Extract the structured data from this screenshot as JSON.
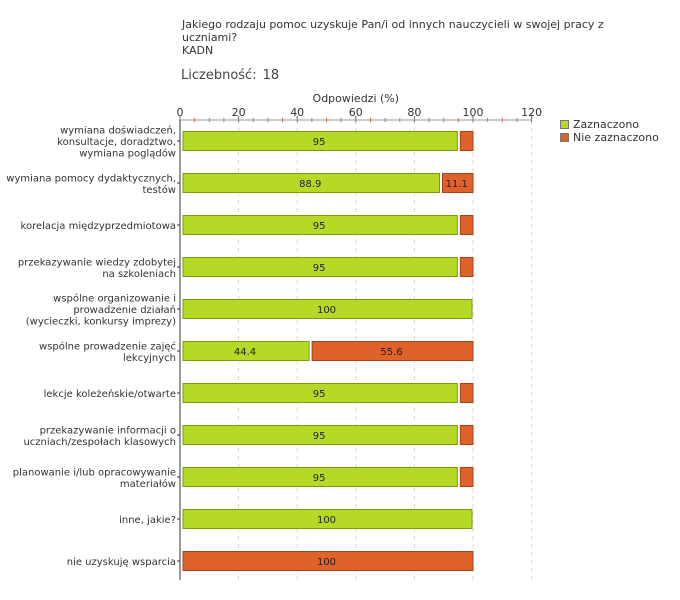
{
  "header": {
    "title": "Jakiego rodzaju pomoc uzyskuje Pan/i od innych nauczycieli w swojej pracy z uczniami?\nKADN",
    "count_label": "Liczebność:",
    "count_value": "18"
  },
  "colors": {
    "selected": "#b5d924",
    "not_selected": "#e0622b"
  },
  "chart_data": {
    "type": "bar",
    "orientation": "horizontal",
    "stacked": true,
    "title": "Jakiego rodzaju pomoc uzyskuje Pan/i od innych nauczycieli w swojej pracy z uczniami? KADN",
    "xlabel": "Odpowiedzi (%)",
    "xlim": [
      0,
      120
    ],
    "xticks": [
      0,
      20,
      40,
      60,
      80,
      100,
      120
    ],
    "legend_position": "top-right",
    "categories": [
      "wymiana doświadczeń, konsultacje, doradztwo, wymiana poglądów",
      "wymiana pomocy dydaktycznych, testów",
      "korelacja międzyprzedmiotowa",
      "przekazywanie wiedzy zdobytej na szkoleniach",
      "wspólne organizowanie i prowadzenie działań (wycieczki, konkursy imprezy)",
      "wspólne prowadzenie zajęć lekcyjnych",
      "lekcje koleżeńskie/otwarte",
      "przekazywanie informacji o uczniach/zespołach klasowych",
      "planowanie i/lub opracowywanie materiałów",
      "inne, jakie?",
      "nie uzyskuję wsparcia"
    ],
    "category_lines": [
      [
        "wymiana doświadczeń,",
        "konsultacje, doradztwo,",
        "wymiana poglądów"
      ],
      [
        "wymiana pomocy dydaktycznych,",
        "testów"
      ],
      [
        "korelacja międzyprzedmiotowa"
      ],
      [
        "przekazywanie wiedzy zdobytej",
        "na szkoleniach"
      ],
      [
        "wspólne organizowanie i",
        "prowadzenie działań",
        "(wycieczki, konkursy imprezy)"
      ],
      [
        "wspólne prowadzenie zajęć",
        "lekcyjnych"
      ],
      [
        "lekcje koleżeńskie/otwarte"
      ],
      [
        "przekazywanie informacji o",
        "uczniach/zespołach klasowych"
      ],
      [
        "planowanie i/lub opracowywanie",
        "materiałów"
      ],
      [
        "inne, jakie?"
      ],
      [
        "nie uzyskuję wsparcia"
      ]
    ],
    "series": [
      {
        "name": "Zaznaczono",
        "color": "#b5d924",
        "values": [
          95,
          88.9,
          95,
          95,
          100,
          44.4,
          95,
          95,
          95,
          100,
          0
        ],
        "labels": [
          "95",
          "88.9",
          "95",
          "95",
          "100",
          "44.4",
          "95",
          "95",
          "95",
          "100",
          ""
        ]
      },
      {
        "name": "Nie zaznaczono",
        "color": "#e0622b",
        "values": [
          5,
          11.1,
          5,
          5,
          0,
          55.6,
          5,
          5,
          5,
          0,
          100
        ],
        "labels": [
          "",
          "11.1",
          "",
          "",
          "",
          "55.6",
          "",
          "",
          "",
          "",
          "100"
        ]
      }
    ]
  }
}
